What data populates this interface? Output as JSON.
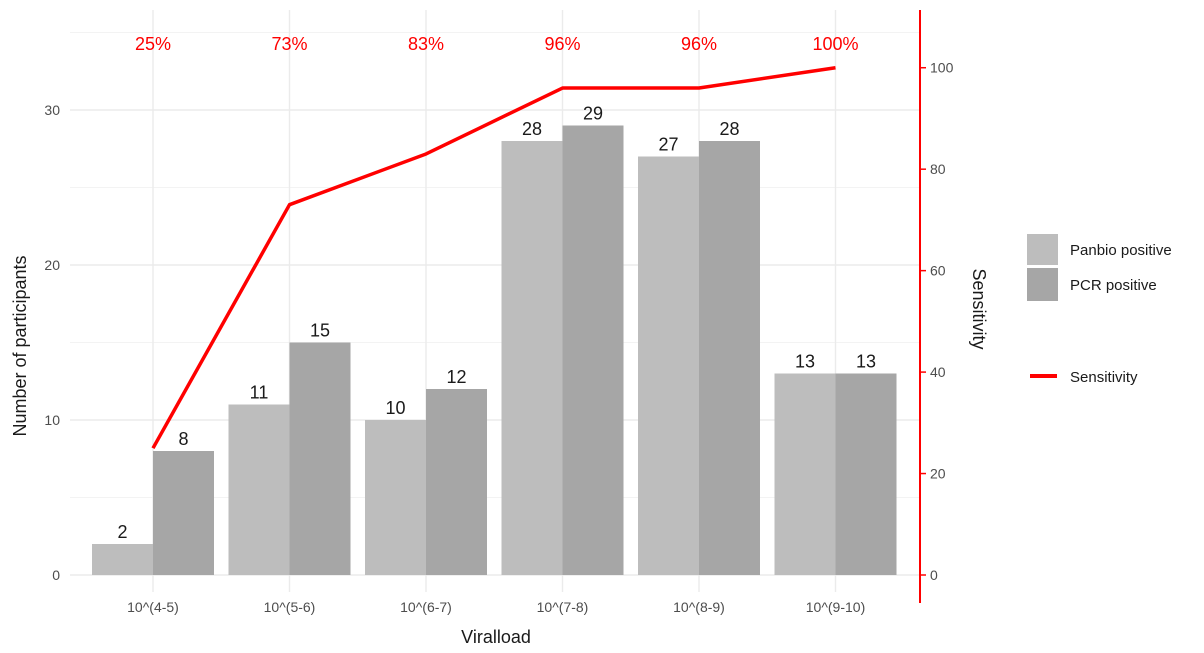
{
  "chart_data": {
    "type": "bar",
    "xlabel": "Viralload",
    "ylabel": "Number of participants",
    "y2label": "Sensitivity",
    "categories": [
      "10^(4-5)",
      "10^(5-6)",
      "10^(6-7)",
      "10^(7-8)",
      "10^(8-9)",
      "10^(9-10)"
    ],
    "series": [
      {
        "name": "Panbio positive",
        "kind": "bar",
        "color": "#bdbdbd",
        "values": [
          2,
          11,
          10,
          28,
          27,
          13
        ],
        "labels": [
          "2",
          "11",
          "10",
          "28",
          "27",
          "13"
        ]
      },
      {
        "name": "PCR positive",
        "kind": "bar",
        "color": "#a6a6a6",
        "values": [
          8,
          15,
          12,
          29,
          28,
          13
        ],
        "labels": [
          "8",
          "15",
          "12",
          "29",
          "28",
          "13"
        ]
      },
      {
        "name": "Sensitivity",
        "kind": "line",
        "axis": "right",
        "color": "#ff0000",
        "values": [
          25,
          73,
          83,
          96,
          96,
          100
        ]
      }
    ],
    "sensitivity_labels": [
      "25%",
      "73%",
      "83%",
      "96%",
      "96%",
      "100%"
    ],
    "ylim": [
      0,
      36
    ],
    "y2lim": [
      0,
      110
    ],
    "yticks": [
      0,
      10,
      20,
      30
    ],
    "ytick_labels": [
      "0",
      "10",
      "20",
      "30"
    ],
    "y2ticks": [
      0,
      20,
      40,
      60,
      80,
      100
    ],
    "y2tick_labels": [
      "0",
      "20",
      "40",
      "60",
      "80",
      "100"
    ],
    "grid": true,
    "legend_position": "right",
    "colors": {
      "line": "#ff0000",
      "grid": "#ebebeb",
      "text": "#1a1a1a",
      "tick": "#4d4d4d"
    }
  }
}
